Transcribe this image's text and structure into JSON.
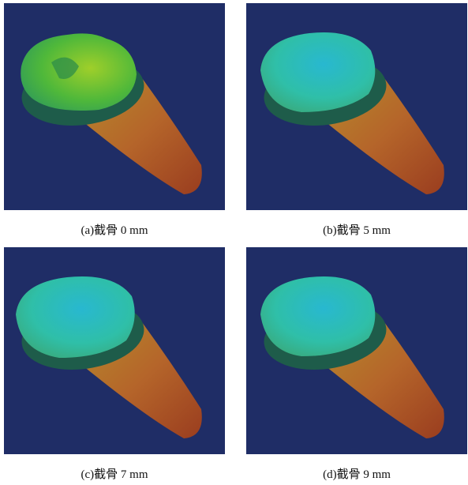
{
  "panels": [
    {
      "caption": "(a)截骨 0 mm"
    },
    {
      "caption": "(b)截骨 5 mm"
    },
    {
      "caption": "(c)截骨 7 mm"
    },
    {
      "caption": "(d)截骨 9 mm"
    }
  ]
}
